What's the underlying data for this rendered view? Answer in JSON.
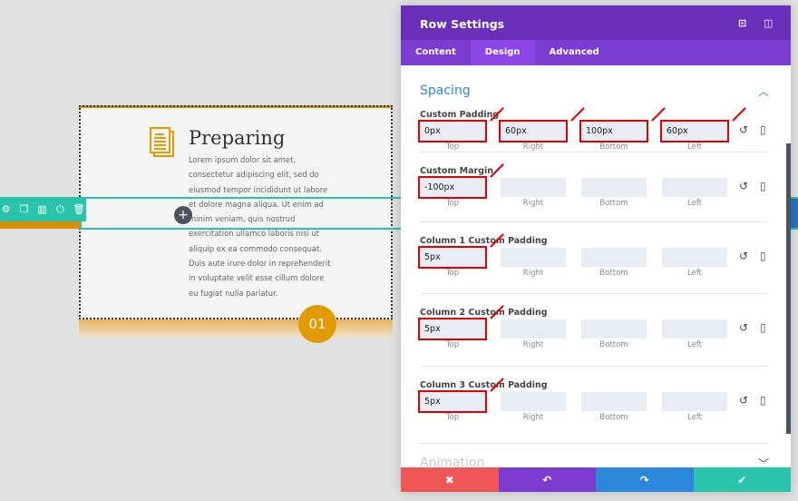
{
  "preview": {
    "title": "Preparing",
    "body": "Lorem ipsum dolor sit amet, consectetur adipiscing elit, sed do eiusmod tempor incididunt ut labore et dolore magna aliqua. Ut enim ad minim veniam, quis nostrud exercitation ullamco laboris nisi ut aliquip ex ea commodo consequat. Duis aute irure dolor in reprehenderit in voluptate velit esse cillum dolore eu fugiat nulla pariatur.",
    "badge": "01",
    "add": "+"
  },
  "toolbar": {
    "icons": [
      "gear-icon",
      "duplicate-icon",
      "columns-icon",
      "save-icon",
      "trash-icon"
    ]
  },
  "panel": {
    "title": "Row Settings",
    "tabs": [
      {
        "label": "Content"
      },
      {
        "label": "Design",
        "active": true
      },
      {
        "label": "Advanced"
      }
    ],
    "section": "Spacing",
    "next_section": "Animation",
    "sides": [
      "Top",
      "Right",
      "Bottom",
      "Left"
    ],
    "groups": [
      {
        "label": "Custom Padding",
        "values": [
          "0px",
          "60px",
          "100px",
          "60px"
        ]
      },
      {
        "label": "Custom Margin",
        "values": [
          "-100px",
          "",
          "",
          ""
        ]
      },
      {
        "label": "Column 1 Custom Padding",
        "values": [
          "5px",
          "",
          "",
          ""
        ]
      },
      {
        "label": "Column 2 Custom Padding",
        "values": [
          "5px",
          "",
          "",
          ""
        ]
      },
      {
        "label": "Column 3 Custom Padding",
        "values": [
          "5px",
          "",
          "",
          ""
        ]
      }
    ],
    "footer": {
      "cancel": "✖",
      "undo": "↶",
      "redo": "↷",
      "save": "✔"
    }
  },
  "colors": {
    "header": "#6a2fb8",
    "tabs": "#7b3dd1",
    "accent": "#2b87da",
    "highlight": "#e10000",
    "cancel": "#ef5656",
    "undo": "#7e3bd0",
    "redo": "#2b87da",
    "save": "#29c4a9"
  }
}
